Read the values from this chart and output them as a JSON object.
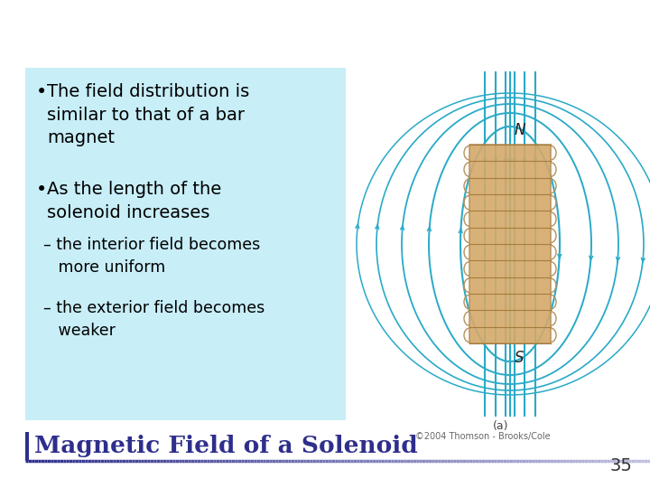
{
  "title": "Magnetic Field of a Solenoid",
  "title_color": "#2e2e8c",
  "title_fontsize": 19,
  "background_color": "#ffffff",
  "header_line_color_left": "#2e2e8c",
  "header_line_color_right": "#aaaadd",
  "bullet1_line1": "The field distribution is",
  "bullet1_line2": "similar to that of a bar",
  "bullet1_line3": "magnet",
  "bullet2_line1": "As the length of the",
  "bullet2_line2": "solenoid increases",
  "sub1_line1": "– the interior field becomes",
  "sub1_line2": "   more uniform",
  "sub2_line1": "– the exterior field becomes",
  "sub2_line2": "   weaker",
  "text_box_color": "#c8eef8",
  "text_color": "#000000",
  "bullet_fontsize": 14,
  "sub_fontsize": 12.5,
  "page_number": "35",
  "solenoid_color": "#d4a96a",
  "solenoid_edge_color": "#b8915a",
  "field_line_color": "#29aac8",
  "label_N": "N",
  "label_S": "S",
  "caption": "(a)",
  "credit": "©2004 Thomson - Brooks/Cole"
}
